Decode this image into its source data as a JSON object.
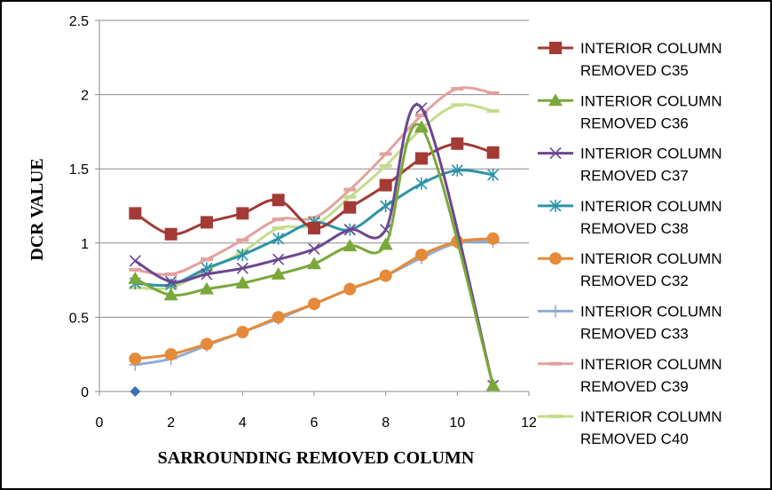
{
  "chart_data": {
    "type": "line",
    "title": "",
    "xlabel": "SARROUNDING REMOVED COLUMN",
    "ylabel": "DCR VALUE",
    "xlim": [
      0,
      12
    ],
    "ylim": [
      0,
      2.5
    ],
    "xticks": [
      0,
      2,
      4,
      6,
      8,
      10,
      12
    ],
    "yticks": [
      0,
      0.5,
      1,
      1.5,
      2,
      2.5
    ],
    "ytick_labels": [
      "0",
      "0.5",
      "1",
      "1.5",
      "2",
      "2.5"
    ],
    "grid": "horizontal",
    "legend_position": "right",
    "series": [
      {
        "name": "INTERIOR COLUMN REMOVED  C35",
        "name_lines": [
          "INTERIOR COLUMN",
          "REMOVED  C35"
        ],
        "color": "#a33a36",
        "marker": "square",
        "x": [
          1,
          2,
          3,
          4,
          5,
          6,
          7,
          8,
          9,
          10,
          11
        ],
        "y": [
          1.2,
          1.06,
          1.14,
          1.2,
          1.29,
          1.1,
          1.24,
          1.39,
          1.57,
          1.67,
          1.61
        ]
      },
      {
        "name": "INTERIOR COLUMN REMOVED  C36",
        "name_lines": [
          "INTERIOR COLUMN",
          "REMOVED  C36"
        ],
        "color": "#7aa83a",
        "marker": "triangle",
        "x": [
          1,
          2,
          3,
          4,
          5,
          6,
          7,
          8,
          9,
          11
        ],
        "y": [
          0.76,
          0.65,
          0.69,
          0.73,
          0.79,
          0.86,
          0.98,
          0.99,
          1.78,
          0.04
        ]
      },
      {
        "name": "INTERIOR COLUMN REMOVED  C37",
        "name_lines": [
          "INTERIOR COLUMN",
          "REMOVED  C37"
        ],
        "color": "#6b4690",
        "marker": "x",
        "x": [
          1,
          2,
          3,
          4,
          5,
          6,
          7,
          8,
          9,
          11
        ],
        "y": [
          0.88,
          0.74,
          0.79,
          0.83,
          0.89,
          0.96,
          1.09,
          1.09,
          1.91,
          0.04
        ]
      },
      {
        "name": "INTERIOR COLUMN REMOVED  C38",
        "name_lines": [
          "INTERIOR COLUMN",
          "REMOVED  C38"
        ],
        "color": "#2d93a8",
        "marker": "asterisk",
        "x": [
          1,
          2,
          3,
          4,
          5,
          6,
          7,
          8,
          9,
          10,
          11
        ],
        "y": [
          0.73,
          0.72,
          0.83,
          0.92,
          1.03,
          1.14,
          1.09,
          1.25,
          1.4,
          1.49,
          1.46
        ]
      },
      {
        "name": "INTERIOR COLUMN REMOVED  C32",
        "name_lines": [
          "INTERIOR COLUMN",
          "REMOVED  C32"
        ],
        "color": "#e48a38",
        "marker": "circle",
        "x": [
          1,
          2,
          3,
          4,
          5,
          6,
          7,
          8,
          9,
          10,
          11
        ],
        "y": [
          0.22,
          0.25,
          0.32,
          0.4,
          0.5,
          0.59,
          0.69,
          0.78,
          0.92,
          1.01,
          1.03
        ]
      },
      {
        "name": "INTERIOR COLUMN REMOVED  C33",
        "name_lines": [
          "INTERIOR COLUMN",
          "REMOVED  C33"
        ],
        "color": "#93acd6",
        "marker": "plus",
        "x": [
          1,
          2,
          3,
          4,
          5,
          6,
          7,
          8,
          9,
          10,
          11
        ],
        "y": [
          0.18,
          0.22,
          0.31,
          0.4,
          0.49,
          0.59,
          0.69,
          0.78,
          0.9,
          1.0,
          1.01
        ]
      },
      {
        "name": "INTERIOR COLUMN REMOVED  C39",
        "name_lines": [
          "INTERIOR COLUMN",
          "REMOVED  C39"
        ],
        "color": "#e2a19f",
        "marker": "dash",
        "x": [
          1,
          2,
          3,
          4,
          5,
          6,
          7,
          8,
          9,
          10,
          11
        ],
        "y": [
          0.82,
          0.79,
          0.89,
          1.02,
          1.16,
          1.17,
          1.36,
          1.6,
          1.86,
          2.04,
          2.01
        ]
      },
      {
        "name": "INTERIOR COLUMN REMOVED  C40",
        "name_lines": [
          "INTERIOR COLUMN",
          "REMOVED  C40"
        ],
        "color": "#c4dc8c",
        "marker": "dash",
        "x": [
          1,
          2,
          3,
          4,
          5,
          6,
          7,
          8,
          9,
          10,
          11
        ],
        "y": [
          0.7,
          0.7,
          0.82,
          0.94,
          1.1,
          1.12,
          1.31,
          1.52,
          1.77,
          1.93,
          1.89
        ]
      }
    ],
    "extra_points": [
      {
        "x": 1,
        "y": 0,
        "color": "#3b6fb6",
        "marker": "diamond"
      }
    ]
  }
}
